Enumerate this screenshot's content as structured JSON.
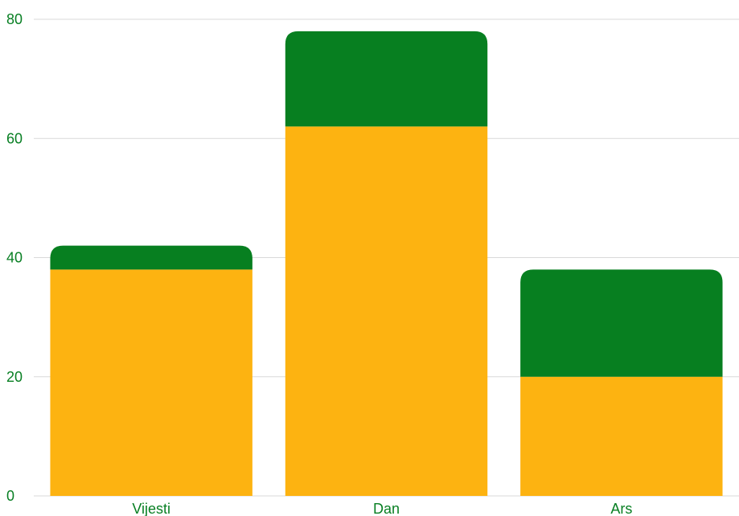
{
  "chart_data": {
    "type": "bar",
    "stacked": true,
    "categories": [
      "Vijesti",
      "Dan",
      "Ars"
    ],
    "series": [
      {
        "values": [
          38,
          62,
          20
        ],
        "color": "#fdb311"
      },
      {
        "values": [
          4,
          16,
          18
        ],
        "color": "#077f20"
      }
    ],
    "ylim": [
      0,
      80
    ],
    "yticks": [
      0,
      20,
      40,
      60,
      80
    ],
    "grid": true,
    "title": "",
    "xlabel": "",
    "ylabel": ""
  },
  "colors": {
    "label": "#087f23",
    "grid": "#d9d9d9"
  }
}
